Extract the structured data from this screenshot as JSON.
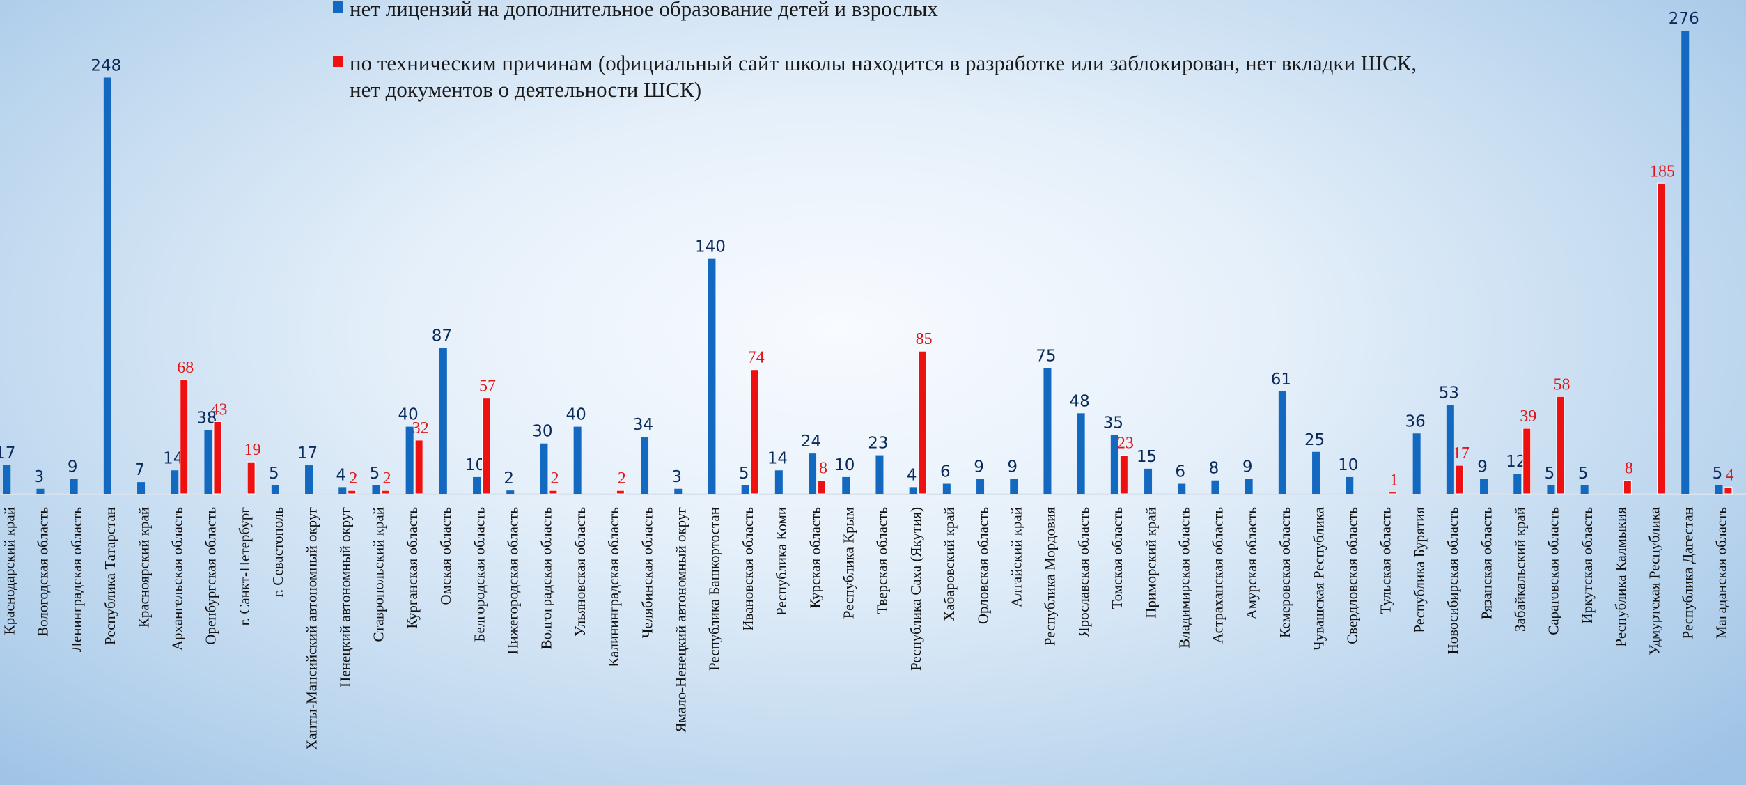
{
  "legend": {
    "series1": "нет лицензий на дополнительное образование детей и взрослых",
    "series2_line1": "по техническим причинам (официальный сайт школы находится в разработке или заблокирован, нет вкладки ШСК,",
    "series2_line2": "нет документов о деятельности ШСК)"
  },
  "colors": {
    "series1": "#1368c0",
    "series2": "#ee1111",
    "label1": "#0b2a5c",
    "label2": "#e01515"
  },
  "chart_data": {
    "type": "bar",
    "title": "",
    "xlabel": "",
    "ylabel": "",
    "ylim": [
      0,
      276
    ],
    "grid": false,
    "legend_position": "top",
    "categories": [
      "Краснодарский край",
      "Вологодская область",
      "Ленинградская область",
      "Республика Татарстан",
      "Красноярский край",
      "Архангельская область",
      "Оренбургская область",
      "г. Санкт-Петербург",
      "г. Севастополь",
      "Ханты-Мансийский автономный округ",
      "Ненецкий автономный округ",
      "Ставропольский край",
      "Курганская область",
      "Омская область",
      "Белгородская область",
      "Нижегородская область",
      "Волгоградская область",
      "Ульяновская область",
      "Калининградская область",
      "Челябинская область",
      "Ямало-Ненецкий автономный округ",
      "Республика Башкортостан",
      "Ивановская область",
      "Республика Коми",
      "Курская область",
      "Республика Крым",
      "Тверская область",
      "Республика Саха (Якутия)",
      "Хабаровский край",
      "Орловская область",
      "Алтайский край",
      "Республика Мордовия",
      "Ярославская область",
      "Томская область",
      "Приморский край",
      "Владимирская область",
      "Астраханская область",
      "Амурская область",
      "Кемеровская область",
      "Чувашская Республика",
      "Свердловская область",
      "Тульская область",
      "Республика Бурятия",
      "Новосибирская область",
      "Рязанская область",
      "Забайкальский край",
      "Саратовская область",
      "Иркутская область",
      "Республика Калмыкия",
      "Удмуртская Республика",
      "Республика Дагестан",
      "Магаданская область"
    ],
    "series": [
      {
        "name": "нет лицензий на дополнительное образование детей и взрослых",
        "values": [
          17,
          3,
          9,
          248,
          7,
          14,
          38,
          null,
          5,
          17,
          4,
          5,
          40,
          87,
          10,
          2,
          30,
          40,
          null,
          34,
          3,
          140,
          5,
          14,
          24,
          10,
          23,
          4,
          6,
          9,
          9,
          75,
          48,
          35,
          15,
          6,
          8,
          9,
          61,
          25,
          10,
          null,
          36,
          53,
          9,
          12,
          5,
          5,
          null,
          null,
          276,
          5
        ]
      },
      {
        "name": "по техническим причинам (официальный сайт школы находится в разработке или заблокирован, нет вкладки ШСК, нет документов о деятельности ШСК)",
        "values": [
          null,
          null,
          null,
          null,
          null,
          68,
          43,
          19,
          null,
          null,
          2,
          2,
          32,
          null,
          57,
          null,
          2,
          null,
          2,
          null,
          null,
          null,
          74,
          null,
          8,
          null,
          null,
          85,
          null,
          null,
          null,
          null,
          null,
          23,
          null,
          null,
          null,
          null,
          null,
          null,
          null,
          1,
          null,
          17,
          null,
          39,
          58,
          null,
          8,
          185,
          null,
          4
        ]
      }
    ]
  }
}
